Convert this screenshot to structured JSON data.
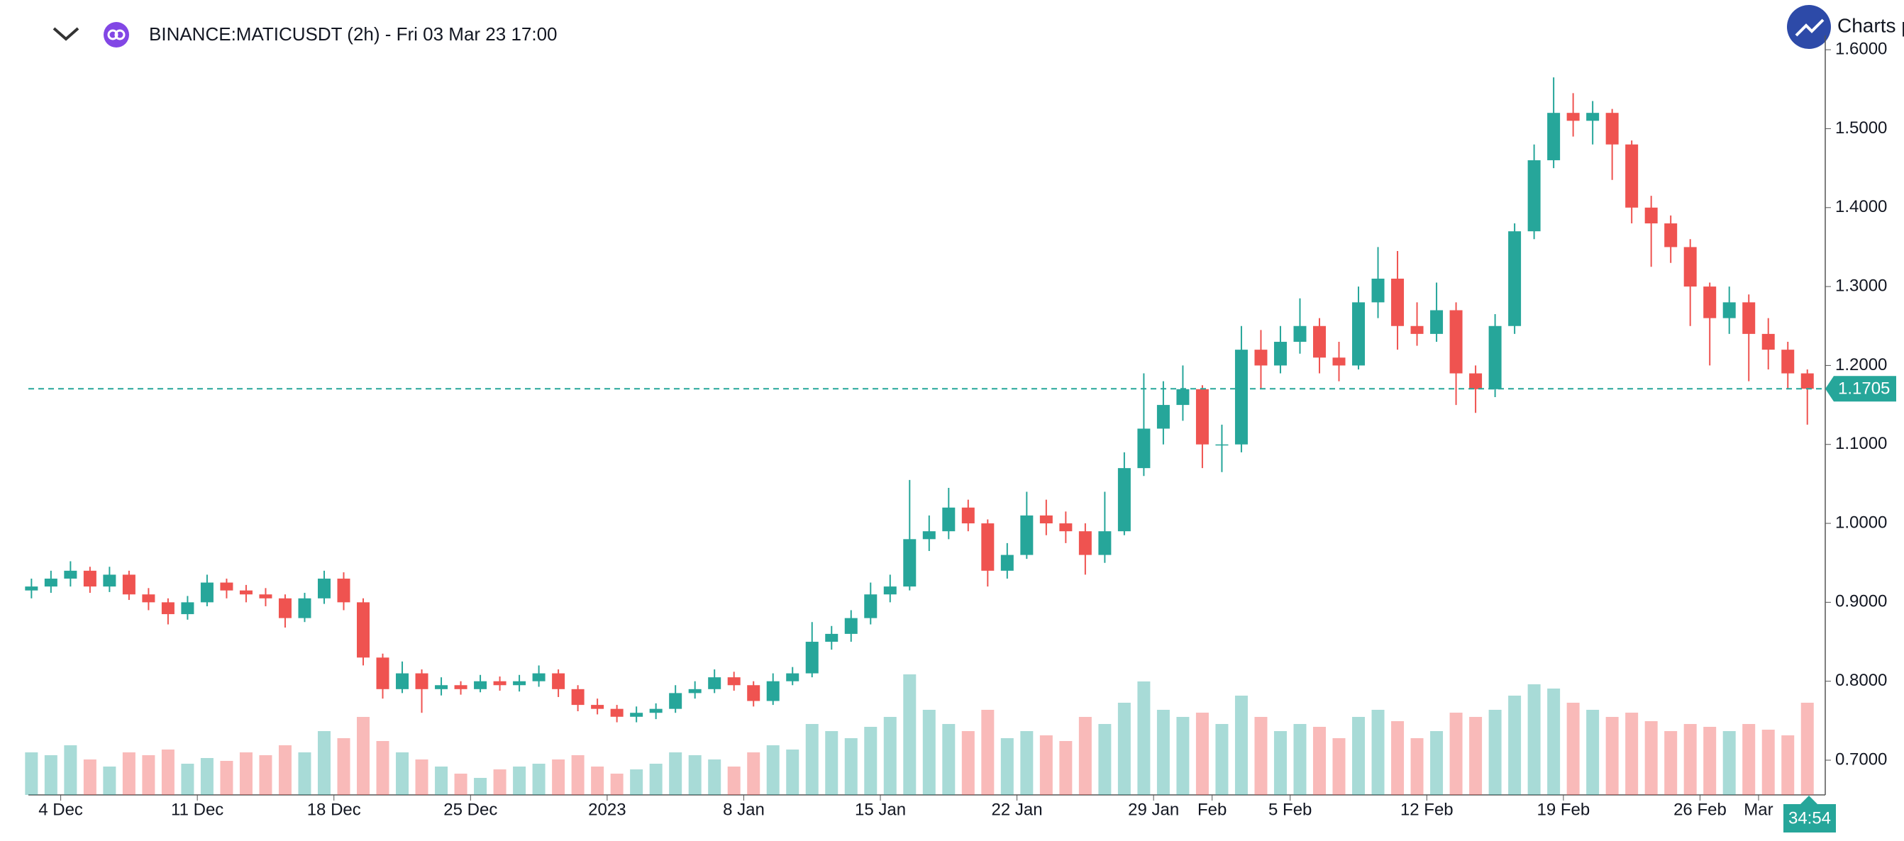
{
  "header": {
    "symbol": "BINANCE:MATICUSDT (2h) - Fri 03 Mar 23 17:00",
    "brand": "Charts p",
    "countdown": "34:54"
  },
  "chart_data": {
    "type": "candlestick",
    "x": [
      "2 Dec",
      "3 Dec",
      "4 Dec",
      "5 Dec",
      "6 Dec",
      "7 Dec",
      "8 Dec",
      "9 Dec",
      "10 Dec",
      "11 Dec",
      "12 Dec",
      "13 Dec",
      "14 Dec",
      "15 Dec",
      "16 Dec",
      "17 Dec",
      "18 Dec",
      "19 Dec",
      "20 Dec",
      "21 Dec",
      "22 Dec",
      "23 Dec",
      "24 Dec",
      "25 Dec",
      "26 Dec",
      "27 Dec",
      "28 Dec",
      "29 Dec",
      "30 Dec",
      "31 Dec",
      "1 Jan",
      "2 Jan",
      "3 Jan",
      "4 Jan",
      "5 Jan",
      "6 Jan",
      "7 Jan",
      "8 Jan",
      "9 Jan",
      "10 Jan",
      "11 Jan",
      "12 Jan",
      "13 Jan",
      "14 Jan",
      "15 Jan",
      "16 Jan",
      "17 Jan",
      "18 Jan",
      "19 Jan",
      "20 Jan",
      "21 Jan",
      "22 Jan",
      "23 Jan",
      "24 Jan",
      "25 Jan",
      "26 Jan",
      "27 Jan",
      "28 Jan",
      "29 Jan",
      "30 Jan",
      "31 Jan",
      "1 Feb",
      "2 Feb",
      "3 Feb",
      "4 Feb",
      "5 Feb",
      "6 Feb",
      "7 Feb",
      "8 Feb",
      "9 Feb",
      "10 Feb",
      "11 Feb",
      "12 Feb",
      "13 Feb",
      "14 Feb",
      "15 Feb",
      "16 Feb",
      "17 Feb",
      "18 Feb",
      "19 Feb",
      "20 Feb",
      "21 Feb",
      "22 Feb",
      "23 Feb",
      "24 Feb",
      "25 Feb",
      "26 Feb",
      "27 Feb",
      "28 Feb",
      "1 Mar",
      "2 Mar",
      "3 Mar"
    ],
    "open": [
      0.915,
      0.92,
      0.93,
      0.94,
      0.92,
      0.935,
      0.91,
      0.9,
      0.885,
      0.9,
      0.925,
      0.915,
      0.91,
      0.905,
      0.88,
      0.905,
      0.93,
      0.9,
      0.83,
      0.79,
      0.81,
      0.79,
      0.795,
      0.79,
      0.8,
      0.795,
      0.8,
      0.81,
      0.79,
      0.77,
      0.765,
      0.755,
      0.76,
      0.765,
      0.785,
      0.79,
      0.805,
      0.795,
      0.775,
      0.8,
      0.81,
      0.85,
      0.86,
      0.88,
      0.91,
      0.92,
      0.98,
      0.99,
      1.02,
      1.0,
      0.94,
      0.96,
      1.01,
      1.0,
      0.99,
      0.96,
      0.99,
      1.07,
      1.12,
      1.15,
      1.17,
      1.1,
      1.1,
      1.22,
      1.2,
      1.23,
      1.25,
      1.21,
      1.2,
      1.28,
      1.31,
      1.25,
      1.24,
      1.27,
      1.19,
      1.17,
      1.25,
      1.37,
      1.46,
      1.52,
      1.51,
      1.52,
      1.48,
      1.4,
      1.38,
      1.35,
      1.3,
      1.26,
      1.28,
      1.24,
      1.22,
      1.19
    ],
    "high": [
      0.93,
      0.94,
      0.952,
      0.945,
      0.945,
      0.94,
      0.918,
      0.905,
      0.908,
      0.935,
      0.93,
      0.922,
      0.918,
      0.91,
      0.912,
      0.94,
      0.938,
      0.905,
      0.835,
      0.825,
      0.815,
      0.805,
      0.8,
      0.808,
      0.806,
      0.808,
      0.82,
      0.815,
      0.795,
      0.778,
      0.77,
      0.768,
      0.772,
      0.795,
      0.8,
      0.815,
      0.812,
      0.8,
      0.81,
      0.818,
      0.875,
      0.87,
      0.89,
      0.925,
      0.935,
      1.055,
      1.01,
      1.045,
      1.03,
      1.005,
      0.975,
      1.04,
      1.03,
      1.015,
      1.0,
      1.04,
      1.09,
      1.19,
      1.18,
      1.2,
      1.175,
      1.125,
      1.25,
      1.245,
      1.25,
      1.285,
      1.26,
      1.23,
      1.3,
      1.35,
      1.345,
      1.28,
      1.305,
      1.28,
      1.2,
      1.265,
      1.38,
      1.48,
      1.565,
      1.545,
      1.535,
      1.525,
      1.485,
      1.415,
      1.39,
      1.36,
      1.305,
      1.3,
      1.29,
      1.26,
      1.23,
      1.195
    ],
    "low": [
      0.905,
      0.912,
      0.92,
      0.912,
      0.913,
      0.903,
      0.89,
      0.872,
      0.878,
      0.895,
      0.905,
      0.9,
      0.895,
      0.868,
      0.875,
      0.898,
      0.89,
      0.82,
      0.778,
      0.785,
      0.76,
      0.782,
      0.783,
      0.786,
      0.788,
      0.787,
      0.793,
      0.78,
      0.762,
      0.758,
      0.748,
      0.748,
      0.752,
      0.76,
      0.778,
      0.785,
      0.788,
      0.768,
      0.77,
      0.795,
      0.805,
      0.84,
      0.85,
      0.872,
      0.9,
      0.915,
      0.965,
      0.98,
      0.99,
      0.92,
      0.93,
      0.955,
      0.985,
      0.975,
      0.935,
      0.95,
      0.985,
      1.06,
      1.1,
      1.13,
      1.07,
      1.065,
      1.09,
      1.17,
      1.19,
      1.215,
      1.19,
      1.18,
      1.195,
      1.26,
      1.22,
      1.225,
      1.23,
      1.15,
      1.14,
      1.16,
      1.24,
      1.36,
      1.45,
      1.49,
      1.48,
      1.435,
      1.38,
      1.325,
      1.33,
      1.25,
      1.2,
      1.24,
      1.18,
      1.195,
      1.17,
      1.125
    ],
    "close": [
      0.92,
      0.93,
      0.94,
      0.92,
      0.935,
      0.91,
      0.9,
      0.885,
      0.9,
      0.925,
      0.915,
      0.91,
      0.905,
      0.88,
      0.905,
      0.93,
      0.9,
      0.83,
      0.79,
      0.81,
      0.79,
      0.795,
      0.79,
      0.8,
      0.795,
      0.8,
      0.81,
      0.79,
      0.77,
      0.765,
      0.755,
      0.76,
      0.765,
      0.785,
      0.79,
      0.805,
      0.795,
      0.775,
      0.8,
      0.81,
      0.85,
      0.86,
      0.88,
      0.91,
      0.92,
      0.98,
      0.99,
      1.02,
      1.0,
      0.94,
      0.96,
      1.01,
      1.0,
      0.99,
      0.96,
      0.99,
      1.07,
      1.12,
      1.15,
      1.17,
      1.1,
      1.1,
      1.22,
      1.2,
      1.23,
      1.25,
      1.21,
      1.2,
      1.28,
      1.31,
      1.25,
      1.24,
      1.27,
      1.19,
      1.17,
      1.25,
      1.37,
      1.46,
      1.52,
      1.51,
      1.52,
      1.48,
      1.4,
      1.38,
      1.35,
      1.3,
      1.26,
      1.28,
      1.24,
      1.22,
      1.19,
      1.1705
    ],
    "volume": [
      30,
      28,
      35,
      25,
      20,
      30,
      28,
      32,
      22,
      26,
      24,
      30,
      28,
      35,
      30,
      45,
      40,
      55,
      38,
      30,
      25,
      20,
      15,
      12,
      18,
      20,
      22,
      25,
      28,
      20,
      15,
      18,
      22,
      30,
      28,
      25,
      20,
      30,
      35,
      32,
      50,
      45,
      40,
      48,
      55,
      85,
      60,
      50,
      45,
      60,
      40,
      45,
      42,
      38,
      55,
      50,
      65,
      80,
      60,
      55,
      58,
      50,
      70,
      55,
      45,
      50,
      48,
      40,
      55,
      60,
      52,
      40,
      45,
      58,
      55,
      60,
      70,
      78,
      75,
      65,
      60,
      55,
      58,
      52,
      45,
      50,
      48,
      45,
      50,
      46,
      42,
      65
    ],
    "up_color": "#26a69a",
    "down_color": "#ef5350",
    "last_price": 1.1705,
    "ylim": [
      0.656,
      1.663
    ],
    "yticks": [
      {
        "value": 0.7,
        "label": "0.7000"
      },
      {
        "value": 0.8,
        "label": "0.8000"
      },
      {
        "value": 0.9,
        "label": "0.9000"
      },
      {
        "value": 1.0,
        "label": "1.0000"
      },
      {
        "value": 1.1,
        "label": "1.1000"
      },
      {
        "value": 1.2,
        "label": "1.2000"
      },
      {
        "value": 1.3,
        "label": "1.3000"
      },
      {
        "value": 1.4,
        "label": "1.4000"
      },
      {
        "value": 1.5,
        "label": "1.5000"
      },
      {
        "value": 1.6,
        "label": "1.6000"
      }
    ],
    "xticks": [
      "4 Dec",
      "11 Dec",
      "18 Dec",
      "25 Dec",
      {
        "value": "1 Jan",
        "label": "2023"
      },
      "8 Jan",
      "15 Jan",
      "22 Jan",
      "29 Jan",
      {
        "value": "1 Feb",
        "label": "Feb"
      },
      "5 Feb",
      "12 Feb",
      "19 Feb",
      "26 Feb",
      {
        "value": "1 Mar",
        "label": "Mar"
      }
    ]
  }
}
